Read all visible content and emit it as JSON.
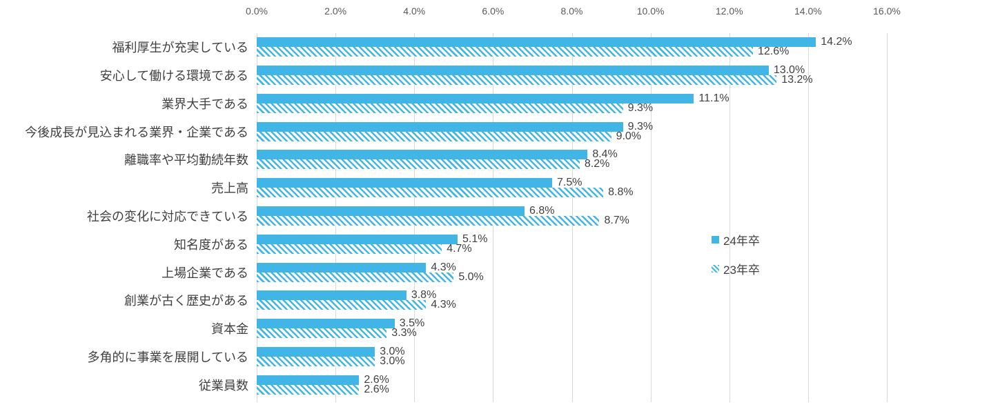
{
  "chart_data": {
    "type": "bar",
    "orientation": "horizontal",
    "title": "",
    "xlabel": "",
    "ylabel": "",
    "categories": [
      "福利厚生が充実している",
      "安心して働ける環境である",
      "業界大手である",
      "今後成長が見込まれる業界・企業である",
      "離職率や平均勤続年数",
      "売上高",
      "社会の変化に対応できている",
      "知名度がある",
      "上場企業である",
      "創業が古く歴史がある",
      "資本金",
      "多角的に事業を展開している",
      "従業員数"
    ],
    "series": [
      {
        "name": "24年卒",
        "pattern": "solid",
        "values": [
          14.2,
          13.0,
          11.1,
          9.3,
          8.4,
          7.5,
          6.8,
          5.1,
          4.3,
          3.8,
          3.5,
          3.0,
          2.6
        ],
        "labels": [
          "14.2%",
          "13.0%",
          "11.1%",
          "9.3%",
          "8.4%",
          "7.5%",
          "6.8%",
          "5.1%",
          "4.3%",
          "3.8%",
          "3.5%",
          "3.0%",
          "2.6%"
        ]
      },
      {
        "name": "23年卒",
        "pattern": "hatched",
        "values": [
          12.6,
          13.2,
          9.3,
          9.0,
          8.2,
          8.8,
          8.7,
          4.7,
          5.0,
          4.3,
          3.3,
          3.0,
          2.6
        ],
        "labels": [
          "12.6%",
          "13.2%",
          "9.3%",
          "9.0%",
          "8.2%",
          "8.8%",
          "8.7%",
          "4.7%",
          "5.0%",
          "4.3%",
          "3.3%",
          "3.0%",
          "2.6%"
        ]
      }
    ],
    "x_ticks": [
      "0.0%",
      "2.0%",
      "4.0%",
      "6.0%",
      "8.0%",
      "10.0%",
      "12.0%",
      "14.0%",
      "16.0%"
    ],
    "xlim": [
      0,
      16
    ],
    "grid": "vertical",
    "legend_position": "middle-right",
    "colors": {
      "bar": "#41B6E6",
      "grid": "#D9D9D9",
      "tick_text": "#595959",
      "text": "#404040",
      "background": "#FFFFFF"
    }
  }
}
